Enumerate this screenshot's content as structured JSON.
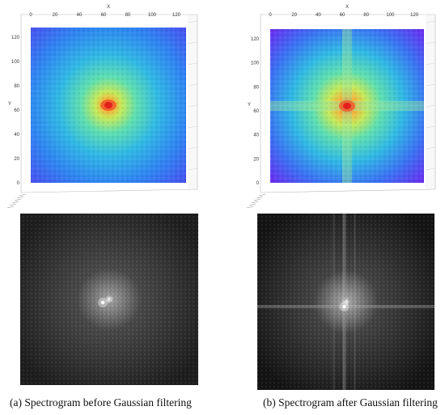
{
  "chart_data": [
    {
      "type": "heatmap",
      "view": "3d-surface-top",
      "caption": "(a) Spectrogram before Gaussian filtering",
      "xlabel": "X",
      "ylabel": "Y",
      "x_ticks": [
        0,
        20,
        40,
        60,
        80,
        100,
        120
      ],
      "y_ticks": [
        0,
        20,
        40,
        60,
        80,
        100,
        120
      ],
      "xlim": [
        0,
        128
      ],
      "ylim": [
        0,
        128
      ],
      "peak": [
        64,
        64
      ],
      "colormap": [
        "#4a4cf0",
        "#2f86f2",
        "#30b9e6",
        "#5fe0b0",
        "#c6ea5a",
        "#f7b23a",
        "#ec3320"
      ],
      "cross_artifact": false
    },
    {
      "type": "heatmap",
      "view": "3d-surface-top",
      "caption": "(b) Spectrogram after Gaussian filtering",
      "xlabel": "X",
      "ylabel": "Y",
      "x_ticks": [
        0,
        20,
        40,
        60,
        80,
        100,
        120
      ],
      "y_ticks": [
        0,
        20,
        40,
        60,
        80,
        100,
        120
      ],
      "xlim": [
        0,
        128
      ],
      "ylim": [
        0,
        128
      ],
      "peak": [
        64,
        64
      ],
      "colormap": [
        "#6a2cf0",
        "#3b72f4",
        "#30b9e6",
        "#5fe0b0",
        "#c6ea5a",
        "#f7b23a",
        "#ec3320"
      ],
      "cross_artifact": true
    }
  ],
  "spectrum_images": [
    {
      "colors": [
        "#1e1e1e",
        "#4a4a4a",
        "#9a9a9a",
        "#ffffff"
      ],
      "cross_artifact": false
    },
    {
      "colors": [
        "#141414",
        "#454545",
        "#a0a0a0",
        "#ffffff"
      ],
      "cross_artifact": true
    }
  ]
}
